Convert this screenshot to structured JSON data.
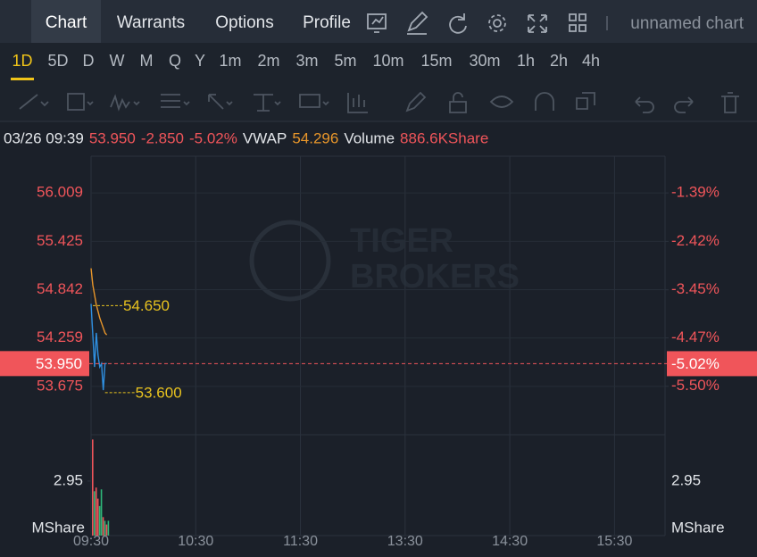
{
  "tabs": [
    "Chart",
    "Warrants",
    "Options",
    "Profile"
  ],
  "active_tab": 0,
  "chart_name": "unnamed chart",
  "timeframes": [
    "1D",
    "5D",
    "D",
    "W",
    "M",
    "Q",
    "Y",
    "1m",
    "2m",
    "3m",
    "5m",
    "10m",
    "15m",
    "30m",
    "1h",
    "2h",
    "4h"
  ],
  "active_timeframe": 0,
  "info": {
    "datetime": "03/26 09:39",
    "change": "-2.850",
    "vwap_label": "VWAP",
    "vwap": "54.296",
    "volume_label": "Volume",
    "volume": "886.6KShare"
  },
  "chart_data": [
    {
      "type": "line",
      "watermark": [
        "TIGER",
        "BROKERS"
      ],
      "x": [
        "09:30",
        "09:31",
        "09:32",
        "09:33",
        "09:34",
        "09:35",
        "09:36",
        "09:37",
        "09:38",
        "09:39"
      ],
      "xlim": [
        "09:30",
        "16:00"
      ],
      "xticks": [
        "09:30",
        "10:30",
        "11:30",
        "13:30",
        "14:30",
        "15:30"
      ],
      "series": [
        {
          "color": "#2f8fe0",
          "values": [
            54.67,
            54.3,
            53.91,
            54.32,
            54.05,
            53.91,
            53.95,
            53.63,
            53.95,
            53.95
          ]
        },
        {
          "name": "VWAP",
          "color": "#e8962a",
          "values": [
            55.1,
            54.9,
            54.78,
            54.66,
            54.58,
            54.5,
            54.44,
            54.38,
            54.32,
            54.296
          ]
        }
      ],
      "ylim": [
        53.092,
        56.452
      ],
      "yticks": [
        {
          "value": 53.675,
          "label": "53.675"
        },
        {
          "value": 54.259,
          "label": "54.259"
        },
        {
          "value": 54.842,
          "label": "54.842"
        },
        {
          "value": 55.425,
          "label": "55.425"
        },
        {
          "value": 56.009,
          "label": "56.009"
        }
      ],
      "y2lim": [
        -6.53,
        -0.61
      ],
      "y2ticks": [
        {
          "value": -5.5,
          "label": "-5.50%"
        },
        {
          "value": -4.47,
          "label": "-4.47%"
        },
        {
          "value": -3.45,
          "label": "-3.45%"
        },
        {
          "value": -2.42,
          "label": "-2.42%"
        },
        {
          "value": -1.39,
          "label": "-1.39%"
        }
      ],
      "last": {
        "value": 53.95,
        "label": "53.950"
      },
      "last_pct": {
        "value": -5.02,
        "label": "-5.02%"
      },
      "annotations": [
        {
          "x": "09:30",
          "value": 54.65,
          "label": "54.650"
        },
        {
          "x": "09:37",
          "value": 53.6,
          "label": "53.600"
        }
      ],
      "grid": true
    },
    {
      "type": "bar",
      "values": [
        5.2,
        2.4,
        2.6,
        2.0,
        1.6,
        2.5,
        1.0,
        0.8,
        0.6,
        0.8
      ],
      "colors": [
        "#f0555a",
        "#2fb87a",
        "#f0555a",
        "#f0555a",
        "#2fb87a",
        "#2fb87a",
        "#f0555a",
        "#2fb87a",
        "#f0555a",
        "#2fb87a"
      ],
      "ylim": [
        0,
        5.46
      ],
      "yticks": [
        2.95
      ],
      "ylabel": "MShare"
    }
  ]
}
